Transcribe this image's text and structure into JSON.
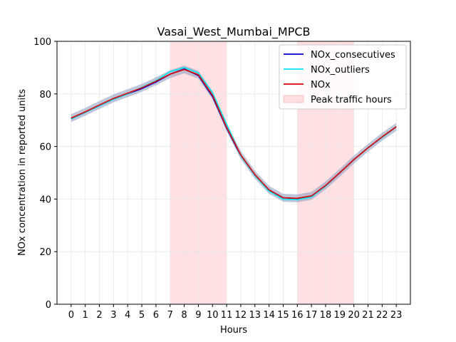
{
  "chart_data": {
    "type": "line",
    "title": "Vasai_West_Mumbai_MPCB",
    "xlabel": "Hours",
    "ylabel": "NOx concentration in reported units",
    "xlim": [
      -1,
      24
    ],
    "ylim": [
      0,
      100
    ],
    "x_ticks": [
      "0",
      "1",
      "2",
      "3",
      "4",
      "5",
      "6",
      "7",
      "8",
      "9",
      "10",
      "11",
      "12",
      "13",
      "14",
      "15",
      "16",
      "17",
      "18",
      "19",
      "20",
      "21",
      "22",
      "23"
    ],
    "y_ticks": [
      "0",
      "20",
      "40",
      "60",
      "80",
      "100"
    ],
    "grid": true,
    "legend_position": "top-right",
    "x": [
      0,
      1,
      2,
      3,
      4,
      5,
      6,
      7,
      8,
      9,
      10,
      11,
      12,
      13,
      14,
      15,
      16,
      17,
      18,
      19,
      20,
      21,
      22,
      23
    ],
    "series": [
      {
        "name": "NOx_consecutives",
        "color": "#0000cc",
        "values": [
          70.5,
          73,
          75.5,
          78,
          80,
          82,
          84.5,
          87.5,
          89.5,
          87,
          79,
          67,
          56.5,
          49,
          43.5,
          40.5,
          40.2,
          41,
          45,
          50,
          55,
          59.5,
          63.5,
          67.5
        ]
      },
      {
        "name": "NOx_outliers",
        "color": "#00e5ee",
        "values": [
          70.5,
          73,
          75.5,
          78,
          80,
          82.5,
          85,
          88.5,
          90,
          88,
          80.5,
          68.5,
          56.5,
          49,
          43,
          40,
          39.8,
          40.8,
          45,
          50,
          55,
          59.5,
          63.5,
          67.5
        ]
      },
      {
        "name": "NOx",
        "color": "#dd0000",
        "values": [
          70.8,
          73.2,
          75.8,
          78.3,
          80.3,
          82.3,
          84.8,
          87.5,
          89.3,
          87.3,
          79.5,
          67.3,
          56.8,
          49.3,
          43.5,
          40.5,
          40.3,
          41.2,
          45.2,
          50,
          55,
          59.5,
          63.7,
          67.5
        ]
      }
    ],
    "band_color": "#8899bb",
    "band_halfwidth": 1.5,
    "peak_traffic_hours": {
      "name": "Peak traffic hours",
      "color": "#ffcdd2",
      "ranges": [
        [
          7,
          11
        ],
        [
          16,
          20
        ]
      ]
    }
  }
}
